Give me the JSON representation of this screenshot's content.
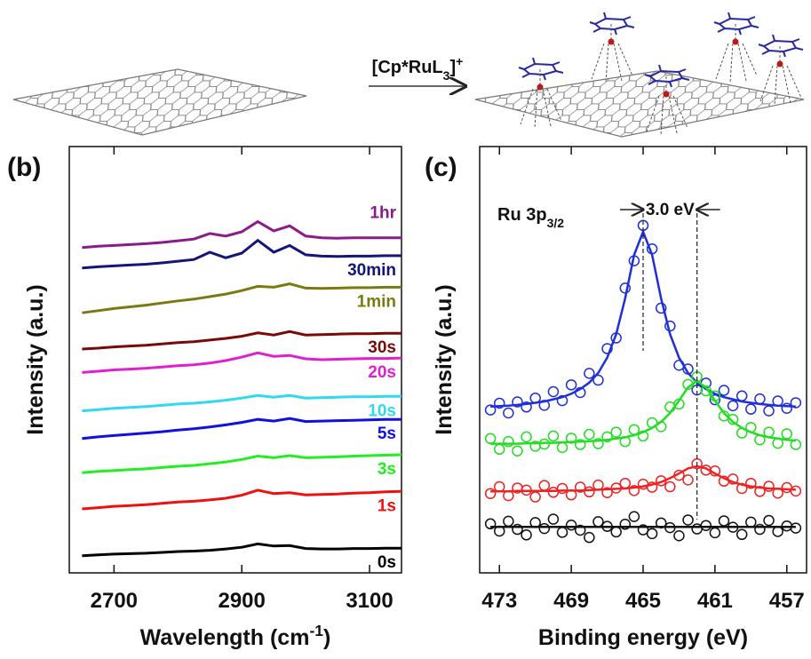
{
  "scheme": {
    "reagent": {
      "text": "[Cp*RuL",
      "sub": "3",
      "after": "]",
      "sup": "+"
    }
  },
  "chart_data": [
    {
      "type": "line",
      "panel_label": "(b)",
      "xlabel": {
        "text": "Wavelength (cm",
        "sup": "-1",
        "after": ")"
      },
      "ylabel": "Intensity (a.u.)",
      "xlim": [
        2630,
        3150
      ],
      "xticks": [
        2700,
        2900,
        3100
      ],
      "ylim": [
        0,
        100
      ],
      "x": [
        2650,
        2675,
        2700,
        2725,
        2750,
        2775,
        2800,
        2825,
        2850,
        2875,
        2900,
        2925,
        2950,
        2975,
        3000,
        3025,
        3050,
        3075,
        3100,
        3125,
        3150
      ],
      "series": [
        {
          "name": "1hr",
          "color": "#8b1a8b",
          "values": [
            76.3,
            76.6,
            76.8,
            77.0,
            77.2,
            77.5,
            77.9,
            78.3,
            79.6,
            79.0,
            80.0,
            82.4,
            80.2,
            81.4,
            79.0,
            78.6,
            78.5,
            78.6,
            78.6,
            78.6,
            78.6
          ]
        },
        {
          "name": "30min",
          "color": "#14147a",
          "values": [
            71.5,
            71.8,
            72.0,
            72.2,
            72.4,
            72.7,
            73.1,
            73.5,
            75.2,
            73.9,
            75.0,
            78.0,
            75.2,
            76.8,
            74.6,
            74.3,
            74.2,
            74.3,
            74.3,
            74.4,
            74.4
          ]
        },
        {
          "name": "1min",
          "color": "#7a7a10",
          "values": [
            61.0,
            61.5,
            62.0,
            62.4,
            62.8,
            63.3,
            63.8,
            64.2,
            64.8,
            65.4,
            66.2,
            67.2,
            67.0,
            67.8,
            66.8,
            66.7,
            66.8,
            66.9,
            66.9,
            67.0,
            67.0
          ]
        },
        {
          "name": "30s",
          "color": "#7a0a0a",
          "values": [
            52.5,
            52.7,
            53.0,
            53.2,
            53.4,
            53.7,
            54.0,
            54.2,
            54.6,
            55.0,
            55.5,
            56.3,
            55.8,
            56.6,
            55.8,
            55.9,
            56.0,
            56.1,
            56.1,
            56.2,
            56.2
          ]
        },
        {
          "name": "20s",
          "color": "#e020d0",
          "values": [
            47.0,
            47.3,
            47.6,
            47.8,
            48.0,
            48.3,
            48.6,
            48.8,
            49.2,
            49.8,
            50.6,
            51.6,
            50.8,
            51.0,
            50.2,
            50.0,
            50.1,
            50.2,
            50.3,
            50.3,
            50.4
          ]
        },
        {
          "name": "10s",
          "color": "#30d8f0",
          "values": [
            38.0,
            38.3,
            38.6,
            38.8,
            39.0,
            39.3,
            39.6,
            39.8,
            40.1,
            40.5,
            41.0,
            41.6,
            41.2,
            41.6,
            41.0,
            41.1,
            41.2,
            41.3,
            41.3,
            41.4,
            41.4
          ]
        },
        {
          "name": "5s",
          "color": "#1010e0",
          "values": [
            31.5,
            31.9,
            32.2,
            32.5,
            32.8,
            33.1,
            33.5,
            33.8,
            34.2,
            34.7,
            35.3,
            36.0,
            35.6,
            36.2,
            35.5,
            35.6,
            35.7,
            35.8,
            35.9,
            36.0,
            36.0
          ]
        },
        {
          "name": "3s",
          "color": "#22ee22",
          "values": [
            23.5,
            23.8,
            24.0,
            24.2,
            24.4,
            24.7,
            25.0,
            25.2,
            25.6,
            26.0,
            26.6,
            27.4,
            27.0,
            27.5,
            27.0,
            27.1,
            27.2,
            27.4,
            27.5,
            27.6,
            27.7
          ]
        },
        {
          "name": "1s",
          "color": "#ee1111",
          "values": [
            15.0,
            15.3,
            15.6,
            15.8,
            16.0,
            16.3,
            16.6,
            16.8,
            17.1,
            17.5,
            18.2,
            19.4,
            18.6,
            18.8,
            18.3,
            18.4,
            18.5,
            18.7,
            18.8,
            19.0,
            19.1
          ]
        },
        {
          "name": "0s",
          "color": "#000000",
          "values": [
            4.0,
            4.2,
            4.4,
            4.5,
            4.6,
            4.8,
            5.0,
            5.1,
            5.3,
            5.6,
            6.0,
            6.8,
            6.3,
            6.4,
            5.7,
            5.6,
            5.6,
            5.7,
            5.7,
            5.8,
            5.8
          ]
        }
      ]
    },
    {
      "type": "scatter",
      "panel_label": "(c)",
      "xlabel": "Binding energy (eV)",
      "ylabel": "Intensity (a.u.)",
      "peak_label": {
        "text": "Ru 3p",
        "sub": "3/2"
      },
      "shift_label": "3.0 eV",
      "vlines": [
        465,
        462
      ],
      "xlim": [
        474.1,
        455.9
      ],
      "xticks": [
        473,
        469,
        465,
        461,
        457
      ],
      "ylim": [
        0,
        100
      ],
      "x": [
        473.5,
        473,
        472.5,
        472,
        471.5,
        471,
        470.5,
        470,
        469.5,
        469,
        468.5,
        468,
        467.5,
        467,
        466.5,
        466,
        465.5,
        465,
        464.5,
        464,
        463.5,
        463,
        462.5,
        462,
        461.5,
        461,
        460.5,
        460,
        459.5,
        459,
        458.5,
        458,
        457.5,
        457,
        456.5
      ],
      "series": [
        {
          "color": "#1f2fd6",
          "values": [
            38.2,
            39.8,
            37.5,
            40.1,
            38.9,
            41.0,
            39.3,
            42.5,
            40.4,
            44.1,
            42.3,
            46.8,
            45.2,
            52.6,
            55.1,
            66.8,
            73.2,
            81.5,
            76.0,
            62.1,
            57.9,
            48.7,
            47.8,
            42.9,
            44.5,
            40.6,
            42.8,
            39.2,
            41.5,
            38.4,
            40.8,
            38.0,
            40.3,
            38.6,
            39.9
          ],
          "fit": [
            39.0,
            39.1,
            39.2,
            39.4,
            39.6,
            39.9,
            40.2,
            40.7,
            41.2,
            42.0,
            43.1,
            44.6,
            46.9,
            50.5,
            56.0,
            64.4,
            74.6,
            80.0,
            74.6,
            64.4,
            56.0,
            50.5,
            46.9,
            44.6,
            43.1,
            42.0,
            41.2,
            40.7,
            40.2,
            39.9,
            39.6,
            39.4,
            39.2,
            39.1,
            39.0
          ]
        },
        {
          "color": "#22dd22",
          "values": [
            31.5,
            29.0,
            30.8,
            28.6,
            31.9,
            29.7,
            30.2,
            32.1,
            29.4,
            31.6,
            30.1,
            32.5,
            30.3,
            31.9,
            33.0,
            30.8,
            33.6,
            32.1,
            35.2,
            34.3,
            38.9,
            39.6,
            44.2,
            46.0,
            42.7,
            41.5,
            36.8,
            36.0,
            32.8,
            34.1,
            31.2,
            33.0,
            30.4,
            32.6,
            30.1
          ],
          "fit": [
            30.3,
            30.3,
            30.3,
            30.3,
            30.4,
            30.4,
            30.5,
            30.5,
            30.6,
            30.7,
            30.8,
            30.9,
            31.0,
            31.2,
            31.5,
            31.8,
            32.3,
            33.0,
            34.0,
            35.4,
            37.5,
            40.4,
            43.5,
            45.0,
            43.5,
            40.4,
            37.5,
            35.4,
            34.0,
            33.0,
            32.3,
            31.8,
            31.5,
            31.2,
            31.0
          ]
        },
        {
          "color": "#ee2222",
          "values": [
            18.6,
            20.2,
            18.1,
            19.9,
            19.4,
            17.8,
            20.5,
            18.9,
            19.8,
            18.3,
            20.1,
            19.0,
            20.6,
            18.8,
            19.9,
            21.0,
            19.3,
            20.8,
            20.1,
            21.6,
            20.2,
            22.9,
            21.8,
            25.6,
            24.1,
            23.9,
            21.5,
            22.0,
            19.8,
            21.0,
            19.1,
            20.3,
            18.7,
            20.0,
            19.2
          ],
          "fit": [
            19.1,
            19.1,
            19.1,
            19.2,
            19.2,
            19.2,
            19.2,
            19.2,
            19.3,
            19.3,
            19.3,
            19.4,
            19.5,
            19.6,
            19.7,
            19.8,
            20.0,
            20.3,
            20.7,
            21.3,
            22.2,
            23.3,
            24.5,
            25.0,
            24.5,
            23.3,
            22.2,
            21.3,
            20.7,
            20.3,
            20.0,
            19.8,
            19.7,
            19.6,
            19.5
          ]
        },
        {
          "color": "#111111",
          "values": [
            11.5,
            9.8,
            12.1,
            10.2,
            8.9,
            11.8,
            10.4,
            12.6,
            9.5,
            11.2,
            10.0,
            8.3,
            12.0,
            10.9,
            9.6,
            11.4,
            13.2,
            10.1,
            9.2,
            11.7,
            10.6,
            8.7,
            12.4,
            10.3,
            11.1,
            9.4,
            12.2,
            10.7,
            9.0,
            11.9,
            10.2,
            12.3,
            9.7,
            11.0,
            10.5
          ],
          "fit": [
            10.8,
            10.8,
            10.8,
            10.8,
            10.8,
            10.8,
            10.8,
            10.8,
            10.8,
            10.8,
            10.8,
            10.8,
            10.8,
            10.8,
            10.8,
            10.8,
            10.8,
            10.8,
            10.8,
            10.8,
            10.8,
            10.8,
            10.8,
            10.8,
            10.8,
            10.8,
            10.8,
            10.8,
            10.8,
            10.8,
            10.8,
            10.8,
            10.8,
            10.8,
            10.8
          ]
        }
      ]
    }
  ]
}
